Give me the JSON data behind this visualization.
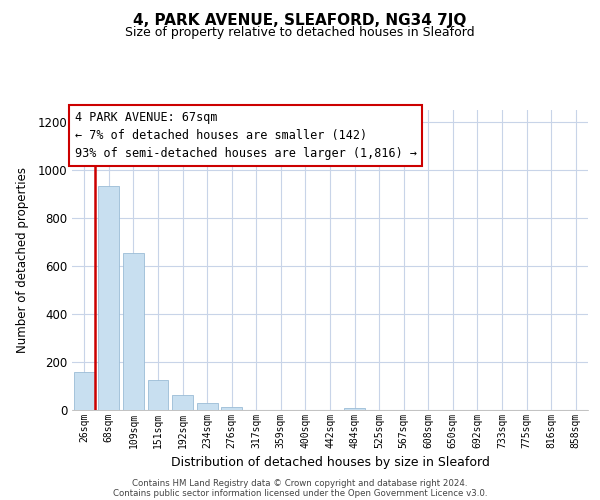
{
  "title": "4, PARK AVENUE, SLEAFORD, NG34 7JQ",
  "subtitle": "Size of property relative to detached houses in Sleaford",
  "xlabel": "Distribution of detached houses by size in Sleaford",
  "ylabel": "Number of detached properties",
  "bar_labels": [
    "26sqm",
    "68sqm",
    "109sqm",
    "151sqm",
    "192sqm",
    "234sqm",
    "276sqm",
    "317sqm",
    "359sqm",
    "400sqm",
    "442sqm",
    "484sqm",
    "525sqm",
    "567sqm",
    "608sqm",
    "650sqm",
    "692sqm",
    "733sqm",
    "775sqm",
    "816sqm",
    "858sqm"
  ],
  "bar_values": [
    160,
    935,
    655,
    127,
    62,
    28,
    13,
    0,
    0,
    0,
    0,
    10,
    0,
    0,
    0,
    0,
    0,
    0,
    0,
    0,
    0
  ],
  "bar_color": "#c8dff0",
  "bar_edgecolor": "#9bbcd6",
  "annotation_title": "4 PARK AVENUE: 67sqm",
  "annotation_line1": "← 7% of detached houses are smaller (142)",
  "annotation_line2": "93% of semi-detached houses are larger (1,816) →",
  "annotation_box_facecolor": "#ffffff",
  "annotation_box_edgecolor": "#cc0000",
  "red_line_color": "#cc0000",
  "ylim": [
    0,
    1250
  ],
  "yticks": [
    0,
    200,
    400,
    600,
    800,
    1000,
    1200
  ],
  "footer1": "Contains HM Land Registry data © Crown copyright and database right 2024.",
  "footer2": "Contains public sector information licensed under the Open Government Licence v3.0.",
  "bg_color": "#ffffff",
  "grid_color": "#c8d4e8",
  "title_fontsize": 11,
  "subtitle_fontsize": 9
}
